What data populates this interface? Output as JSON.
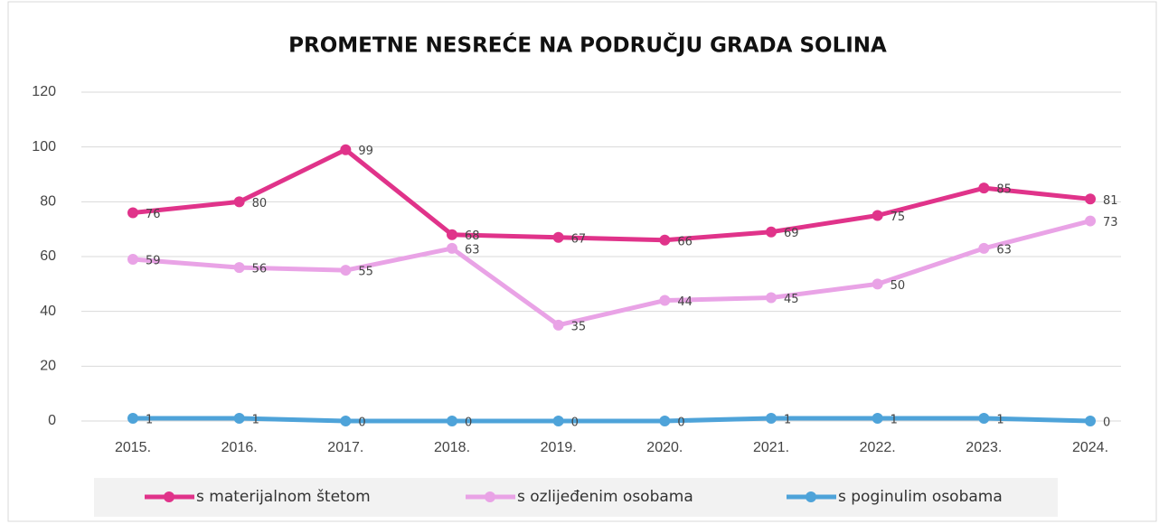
{
  "chart_data": {
    "type": "line",
    "title": "PROMETNE NESREĆE NA PODRUČJU GRADA SOLINA",
    "categories": [
      "2015.",
      "2016.",
      "2017.",
      "2018.",
      "2019.",
      "2020.",
      "2021.",
      "2022.",
      "2023.",
      "2024."
    ],
    "series": [
      {
        "name": "s materijalnom štetom",
        "color": "#e0338a",
        "values": [
          76,
          80,
          99,
          68,
          67,
          66,
          69,
          75,
          85,
          81
        ]
      },
      {
        "name": "s ozlijeđenim osobama",
        "color": "#e9a3e6",
        "values": [
          59,
          56,
          55,
          63,
          35,
          44,
          45,
          50,
          63,
          73
        ]
      },
      {
        "name": "s poginulim osobama",
        "color": "#4ea3d9",
        "values": [
          1,
          1,
          0,
          0,
          0,
          0,
          1,
          1,
          1,
          0
        ]
      }
    ],
    "ylim": [
      0,
      120
    ],
    "yticks": [
      0,
      20,
      40,
      60,
      80,
      100,
      120
    ],
    "grid": true,
    "legend": "bottom"
  }
}
